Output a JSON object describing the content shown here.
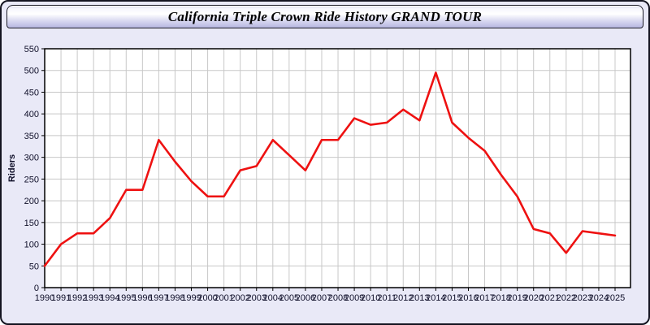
{
  "header": {
    "title": "California Triple Crown Ride History GRAND TOUR"
  },
  "chart_data": {
    "type": "line",
    "title": "California Triple Crown Ride History GRAND TOUR",
    "xlabel": "",
    "ylabel": "Riders",
    "x": [
      1990,
      1991,
      1992,
      1993,
      1994,
      1995,
      1996,
      1997,
      1998,
      1999,
      2000,
      2001,
      2002,
      2003,
      2004,
      2005,
      2006,
      2007,
      2008,
      2009,
      2010,
      2011,
      2012,
      2013,
      2014,
      2015,
      2016,
      2017,
      2018,
      2019,
      2020,
      2021,
      2022,
      2023,
      2024,
      2025
    ],
    "series": [
      {
        "name": "Riders",
        "values": [
          50,
          100,
          125,
          125,
          160,
          225,
          225,
          340,
          290,
          245,
          210,
          210,
          270,
          280,
          340,
          305,
          270,
          340,
          340,
          390,
          375,
          380,
          410,
          385,
          495,
          380,
          345,
          315,
          260,
          210,
          135,
          125,
          80,
          130,
          125,
          120
        ]
      }
    ],
    "ylim": [
      0,
      550
    ],
    "xlim": [
      1990,
      2026
    ],
    "yticks": [
      0,
      50,
      100,
      150,
      200,
      250,
      300,
      350,
      400,
      450,
      500,
      550
    ],
    "grid": true,
    "legend": "none",
    "colors": {
      "line": "#ee1111",
      "plot_bg": "#ffffff",
      "page_bg": "#e9e9f7",
      "grid": "#c8c8c8",
      "axis": "#000000",
      "labels": "#10102a"
    }
  }
}
